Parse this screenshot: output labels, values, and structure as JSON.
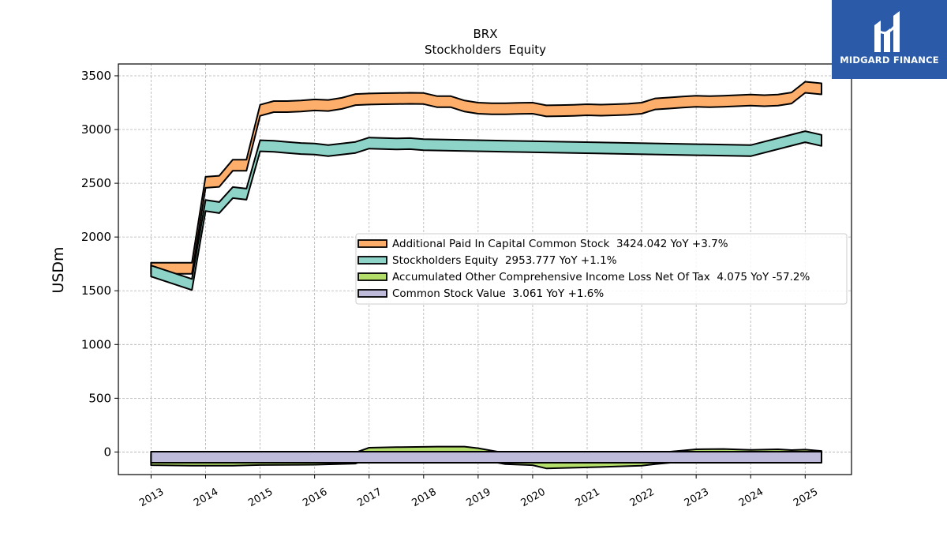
{
  "chart_data": {
    "type": "area",
    "title": "BRX",
    "subtitle": "Stockholders  Equity",
    "ylabel": "USDm",
    "xlabel": "",
    "ylim": [
      -210,
      3610
    ],
    "xlim": [
      2012.4,
      2025.85
    ],
    "yticks": [
      0,
      500,
      1000,
      1500,
      2000,
      2500,
      3000,
      3500
    ],
    "xticks": [
      "2013",
      "2014",
      "2015",
      "2016",
      "2017",
      "2018",
      "2019",
      "2020",
      "2021",
      "2022",
      "2023",
      "2024",
      "2025"
    ],
    "grid": true,
    "legend_position": "center-right",
    "series": [
      {
        "name": "Additional Paid In Capital Common Stock  3424.042 YoY +3.7%",
        "color": "#fdae6b",
        "points": [
          [
            2013.0,
            1760
          ],
          [
            2013.75,
            1760
          ],
          [
            2014.0,
            2560
          ],
          [
            2014.25,
            2570
          ],
          [
            2014.5,
            2720
          ],
          [
            2014.75,
            2720
          ],
          [
            2015.0,
            3230
          ],
          [
            2015.25,
            3265
          ],
          [
            2015.5,
            3265
          ],
          [
            2015.75,
            3270
          ],
          [
            2016.0,
            3280
          ],
          [
            2016.25,
            3275
          ],
          [
            2016.5,
            3295
          ],
          [
            2016.75,
            3330
          ],
          [
            2017.0,
            3335
          ],
          [
            2017.25,
            3338
          ],
          [
            2017.5,
            3340
          ],
          [
            2017.75,
            3342
          ],
          [
            2018.0,
            3340
          ],
          [
            2018.25,
            3310
          ],
          [
            2018.5,
            3310
          ],
          [
            2018.75,
            3270
          ],
          [
            2019.0,
            3250
          ],
          [
            2019.25,
            3245
          ],
          [
            2019.5,
            3245
          ],
          [
            2019.75,
            3248
          ],
          [
            2020.0,
            3250
          ],
          [
            2020.25,
            3225
          ],
          [
            2020.5,
            3227
          ],
          [
            2020.75,
            3230
          ],
          [
            2021.0,
            3235
          ],
          [
            2021.25,
            3232
          ],
          [
            2021.5,
            3235
          ],
          [
            2021.75,
            3240
          ],
          [
            2022.0,
            3250
          ],
          [
            2022.25,
            3290
          ],
          [
            2022.5,
            3298
          ],
          [
            2022.75,
            3307
          ],
          [
            2023.0,
            3315
          ],
          [
            2023.25,
            3310
          ],
          [
            2023.5,
            3315
          ],
          [
            2023.75,
            3320
          ],
          [
            2024.0,
            3325
          ],
          [
            2024.25,
            3320
          ],
          [
            2024.5,
            3325
          ],
          [
            2024.75,
            3345
          ],
          [
            2025.0,
            3445
          ],
          [
            2025.3,
            3430
          ]
        ]
      },
      {
        "name": "Stockholders Equity  2953.777 YoY +1.1%",
        "color": "#8dd3c7",
        "points": [
          [
            2013.0,
            1735
          ],
          [
            2013.75,
            1610
          ],
          [
            2014.0,
            2345
          ],
          [
            2014.25,
            2325
          ],
          [
            2014.5,
            2465
          ],
          [
            2014.75,
            2450
          ],
          [
            2015.0,
            2900
          ],
          [
            2015.25,
            2895
          ],
          [
            2015.5,
            2885
          ],
          [
            2015.75,
            2875
          ],
          [
            2016.0,
            2870
          ],
          [
            2016.25,
            2855
          ],
          [
            2016.5,
            2870
          ],
          [
            2016.75,
            2885
          ],
          [
            2017.0,
            2925
          ],
          [
            2017.25,
            2922
          ],
          [
            2017.5,
            2918
          ],
          [
            2017.75,
            2920
          ],
          [
            2018.0,
            2910
          ],
          [
            2024.0,
            2855
          ],
          [
            2025.0,
            2985
          ],
          [
            2025.3,
            2950
          ]
        ]
      },
      {
        "name": "Accumulated Other Comprehensive Income Loss Net Of Tax  4.075 YoY -57.2%",
        "color": "#b3de69",
        "points": [
          [
            2013.0,
            -20
          ],
          [
            2013.75,
            -25
          ],
          [
            2014.5,
            -25
          ],
          [
            2015.0,
            -18
          ],
          [
            2016.0,
            -15
          ],
          [
            2016.75,
            -5
          ],
          [
            2017.0,
            40
          ],
          [
            2017.5,
            45
          ],
          [
            2018.0,
            48
          ],
          [
            2018.25,
            50
          ],
          [
            2018.75,
            50
          ],
          [
            2019.0,
            35
          ],
          [
            2019.5,
            -10
          ],
          [
            2020.0,
            -20
          ],
          [
            2020.25,
            -50
          ],
          [
            2021.0,
            -40
          ],
          [
            2022.0,
            -25
          ],
          [
            2022.25,
            -10
          ],
          [
            2023.0,
            25
          ],
          [
            2023.5,
            28
          ],
          [
            2024.0,
            20
          ],
          [
            2024.5,
            25
          ],
          [
            2024.75,
            18
          ],
          [
            2025.0,
            22
          ],
          [
            2025.3,
            10
          ]
        ]
      },
      {
        "name": "Common Stock Value  3.061 YoY +1.6%",
        "color": "#bebada",
        "points": [
          [
            2013.0,
            3
          ],
          [
            2025.3,
            3
          ]
        ]
      }
    ]
  },
  "logo": {
    "text": "MIDGARD FINANCE",
    "background": "#2a5aa8"
  }
}
